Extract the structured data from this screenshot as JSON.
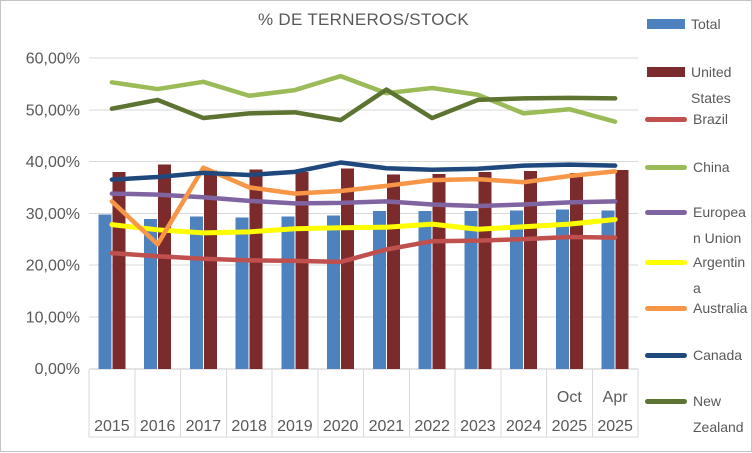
{
  "title": "% DE TERNEROS/STOCK",
  "y_axis": {
    "tick_labels": [
      "0,00%",
      "10,00%",
      "20,00%",
      "30,00%",
      "40,00%",
      "50,00%",
      "60,00%"
    ],
    "tick_values": [
      0,
      10,
      20,
      30,
      40,
      50,
      60
    ]
  },
  "x_axis": {
    "categories": [
      {
        "month": "",
        "year": "2015"
      },
      {
        "month": "",
        "year": "2016"
      },
      {
        "month": "",
        "year": "2017"
      },
      {
        "month": "",
        "year": "2018"
      },
      {
        "month": "",
        "year": "2019"
      },
      {
        "month": "",
        "year": "2020"
      },
      {
        "month": "",
        "year": "2021"
      },
      {
        "month": "",
        "year": "2022"
      },
      {
        "month": "",
        "year": "2023"
      },
      {
        "month": "",
        "year": "2024"
      },
      {
        "month": "Oct",
        "year": "2025"
      },
      {
        "month": "Apr",
        "year": "2025"
      }
    ]
  },
  "chart_data": {
    "type": "combo-bar-line",
    "title": "% DE TERNEROS/STOCK",
    "categories": [
      "2015",
      "2016",
      "2017",
      "2018",
      "2019",
      "2020",
      "2021",
      "2022",
      "2023",
      "2024",
      "Oct 2025",
      "Apr 2025"
    ],
    "ylim": [
      0,
      60
    ],
    "y_tick_step": 10,
    "y_tick_format": "percent-comma",
    "grid": true,
    "legend_position": "right",
    "series": [
      {
        "name": "Total",
        "type": "bar",
        "color": "#4E82BE",
        "values": [
          29.8,
          28.9,
          29.4,
          29.2,
          29.4,
          29.6,
          30.4,
          30.4,
          30.4,
          30.5,
          30.7,
          30.5
        ]
      },
      {
        "name": "United States",
        "type": "bar",
        "color": "#7B2B2B",
        "values": [
          38.0,
          39.4,
          38.3,
          38.5,
          38.0,
          38.6,
          37.5,
          37.6,
          38.0,
          38.2,
          37.8,
          38.4
        ]
      },
      {
        "name": "Brazil",
        "type": "line",
        "color": "#C0504D",
        "values": [
          22.3,
          21.7,
          21.2,
          20.9,
          20.8,
          20.6,
          23.0,
          24.6,
          24.7,
          25.0,
          25.4,
          25.3
        ]
      },
      {
        "name": "China",
        "type": "line",
        "color": "#9BBB59",
        "values": [
          55.3,
          54.0,
          55.4,
          52.7,
          53.8,
          56.5,
          53.2,
          54.2,
          52.9,
          49.3,
          50.1,
          47.7
        ]
      },
      {
        "name": "European Union",
        "type": "line",
        "color": "#8064A2",
        "values": [
          33.8,
          33.6,
          33.1,
          32.4,
          31.9,
          32.0,
          32.3,
          31.7,
          31.4,
          31.7,
          32.1,
          32.3
        ]
      },
      {
        "name": "Argentina",
        "type": "line",
        "color": "#FFFF00",
        "values": [
          27.8,
          26.8,
          26.2,
          26.4,
          27.0,
          27.2,
          27.3,
          27.9,
          26.9,
          27.4,
          27.9,
          28.8
        ]
      },
      {
        "name": "Australia",
        "type": "line",
        "color": "#F79646",
        "values": [
          32.3,
          24.0,
          38.8,
          35.0,
          33.8,
          34.3,
          35.3,
          36.4,
          36.6,
          36.0,
          37.2,
          38.1
        ]
      },
      {
        "name": "Canada",
        "type": "line",
        "color": "#1F497D",
        "values": [
          36.5,
          37.0,
          37.8,
          37.4,
          38.0,
          39.8,
          38.7,
          38.4,
          38.6,
          39.2,
          39.4,
          39.2
        ]
      },
      {
        "name": "New Zealand",
        "type": "line",
        "color": "#5D7331",
        "values": [
          50.2,
          51.9,
          48.4,
          49.3,
          49.5,
          48.0,
          53.9,
          48.4,
          51.9,
          52.2,
          52.3,
          52.2
        ]
      }
    ]
  },
  "legend": {
    "entries": [
      {
        "series": 0,
        "lines": [
          "Total"
        ]
      },
      {
        "series": 1,
        "lines": [
          "United",
          "States"
        ]
      },
      {
        "series": 2,
        "lines": [
          "Brazil"
        ]
      },
      {
        "series": 3,
        "lines": [
          "China"
        ]
      },
      {
        "series": 4,
        "lines": [
          "Europea",
          "n Union"
        ]
      },
      {
        "series": 5,
        "lines": [
          "Argentin",
          "a"
        ]
      },
      {
        "series": 6,
        "lines": [
          "Australia"
        ]
      },
      {
        "series": 7,
        "lines": [
          "Canada"
        ]
      },
      {
        "series": 8,
        "lines": [
          "New",
          "Zealand"
        ]
      }
    ]
  },
  "colors": {
    "gridline": "#D9D9D9",
    "axis_table_border": "#D9D9D9",
    "axis_line": "#C9C9C9",
    "text": "#595959"
  }
}
